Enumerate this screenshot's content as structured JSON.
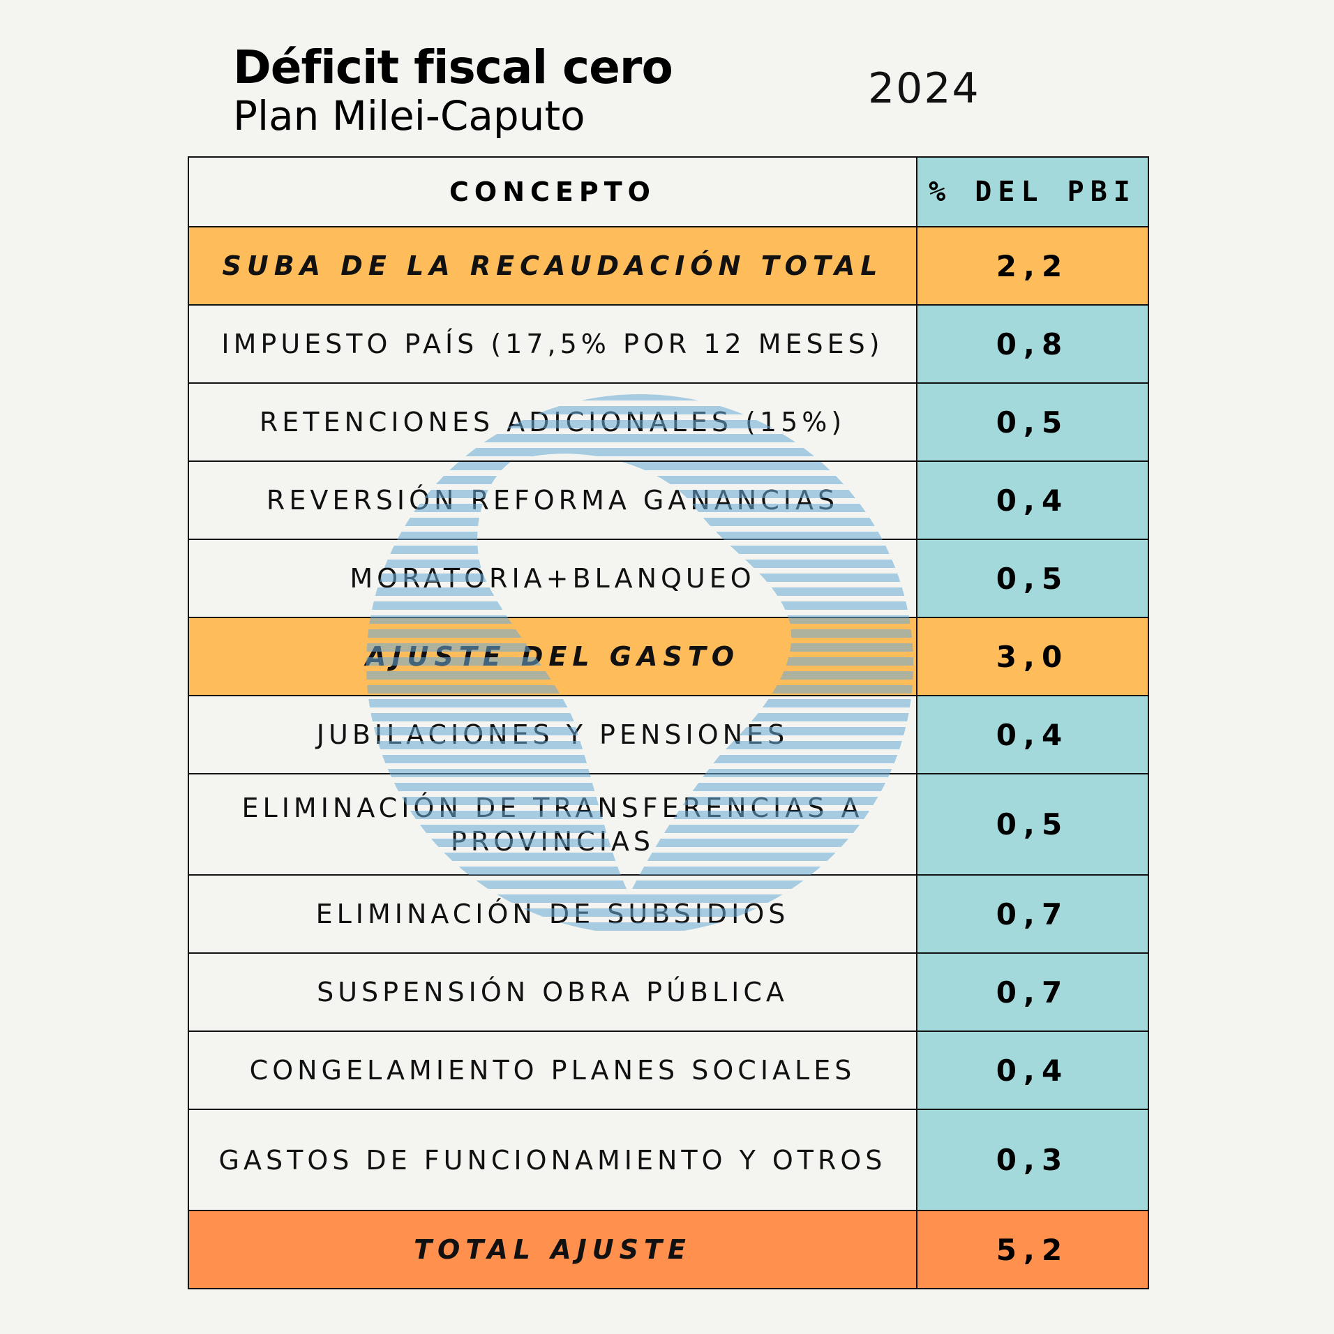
{
  "header": {
    "title": "Déficit fiscal cero",
    "subtitle": "Plan Milei-Caputo",
    "year": "2024"
  },
  "table": {
    "col_concept": "CONCEPTO",
    "col_value": "% DEL PBI",
    "rows": [
      {
        "label": "SUBA DE LA RECAUDACIÓN TOTAL",
        "value": "2,2",
        "kind": "section"
      },
      {
        "label": "IMPUESTO PAÍS (17,5% POR 12 MESES)",
        "value": "0,8",
        "kind": "item"
      },
      {
        "label": "RETENCIONES ADICIONALES (15%)",
        "value": "0,5",
        "kind": "item"
      },
      {
        "label": "REVERSIÓN REFORMA GANANCIAS",
        "value": "0,4",
        "kind": "item"
      },
      {
        "label": "MORATORIA+BLANQUEO",
        "value": "0,5",
        "kind": "item"
      },
      {
        "label": "AJUSTE DEL GASTO",
        "value": "3,0",
        "kind": "section"
      },
      {
        "label": "JUBILACIONES Y PENSIONES",
        "value": "0,4",
        "kind": "item"
      },
      {
        "label": "ELIMINACIÓN DE TRANSFERENCIAS A PROVINCIAS",
        "value": "0,5",
        "kind": "item"
      },
      {
        "label": "ELIMINACIÓN DE SUBSIDIOS",
        "value": "0,7",
        "kind": "item"
      },
      {
        "label": "SUSPENSIÓN OBRA PÚBLICA",
        "value": "0,7",
        "kind": "item"
      },
      {
        "label": "CONGELAMIENTO PLANES SOCIALES",
        "value": "0,4",
        "kind": "item"
      },
      {
        "label": "GASTOS DE FUNCIONAMIENTO Y OTROS",
        "value": "0,3",
        "kind": "item"
      },
      {
        "label": "TOTAL AJUSTE",
        "value": "5,2",
        "kind": "total"
      }
    ]
  },
  "colors": {
    "background": "#f4f5f0",
    "section": "#febd5a",
    "total": "#ff904e",
    "value_cell": "#a3d9db",
    "watermark_stripe": "#6aaad6"
  }
}
